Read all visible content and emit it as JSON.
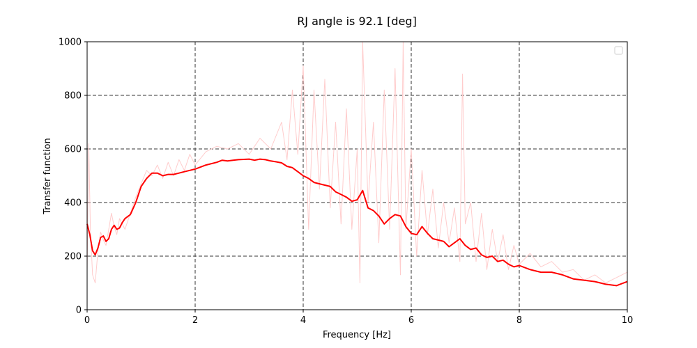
{
  "chart_data": {
    "type": "line",
    "title": "RJ angle is 92.1 [deg]",
    "xlabel": "Frequency [Hz]",
    "ylabel": "Transfer function",
    "xlim": [
      0,
      10
    ],
    "ylim": [
      0,
      1000
    ],
    "x_ticks": [
      0,
      2,
      4,
      6,
      8,
      10
    ],
    "y_ticks": [
      0,
      200,
      400,
      600,
      800,
      1000
    ],
    "x_tick_labels": [
      "0",
      "2",
      "4",
      "6",
      "8",
      "10"
    ],
    "y_tick_labels": [
      "0",
      "200",
      "400",
      "600",
      "800",
      "1000"
    ],
    "grid": true,
    "grid_style": "dashed",
    "legend": {
      "placement": "upper right",
      "entries": []
    },
    "series": [
      {
        "role": "raw",
        "color": "#ffcccc",
        "x": [
          0.0,
          0.03,
          0.06,
          0.1,
          0.15,
          0.2,
          0.25,
          0.3,
          0.35,
          0.4,
          0.45,
          0.5,
          0.55,
          0.6,
          0.7,
          0.8,
          0.9,
          1.0,
          1.1,
          1.2,
          1.3,
          1.4,
          1.5,
          1.6,
          1.7,
          1.8,
          1.9,
          2.0,
          2.2,
          2.4,
          2.6,
          2.8,
          3.0,
          3.2,
          3.4,
          3.6,
          3.7,
          3.8,
          3.9,
          4.0,
          4.1,
          4.2,
          4.3,
          4.4,
          4.5,
          4.6,
          4.7,
          4.8,
          4.9,
          5.0,
          5.05,
          5.1,
          5.2,
          5.3,
          5.4,
          5.5,
          5.6,
          5.7,
          5.8,
          5.85,
          5.9,
          6.0,
          6.1,
          6.2,
          6.3,
          6.4,
          6.5,
          6.6,
          6.7,
          6.8,
          6.9,
          6.95,
          7.0,
          7.1,
          7.2,
          7.3,
          7.4,
          7.5,
          7.6,
          7.7,
          7.8,
          7.9,
          8.0,
          8.2,
          8.4,
          8.6,
          8.8,
          9.0,
          9.2,
          9.4,
          9.6,
          9.8,
          10.0
        ],
        "values": [
          150,
          620,
          300,
          130,
          100,
          220,
          290,
          260,
          240,
          300,
          360,
          310,
          280,
          340,
          300,
          360,
          420,
          470,
          520,
          500,
          540,
          490,
          550,
          500,
          560,
          520,
          580,
          540,
          590,
          610,
          600,
          620,
          580,
          640,
          600,
          700,
          560,
          820,
          580,
          910,
          300,
          820,
          450,
          860,
          380,
          700,
          320,
          750,
          300,
          600,
          100,
          1000,
          400,
          700,
          250,
          820,
          300,
          900,
          130,
          1000,
          300,
          600,
          200,
          520,
          280,
          450,
          230,
          400,
          250,
          380,
          180,
          880,
          320,
          400,
          180,
          360,
          150,
          300,
          180,
          280,
          150,
          240,
          170,
          210,
          160,
          180,
          140,
          150,
          110,
          130,
          100,
          120,
          140
        ]
      },
      {
        "role": "smoothed",
        "color": "#ff0000",
        "x": [
          0.0,
          0.05,
          0.1,
          0.15,
          0.2,
          0.25,
          0.3,
          0.35,
          0.4,
          0.45,
          0.5,
          0.55,
          0.6,
          0.65,
          0.7,
          0.8,
          0.9,
          1.0,
          1.1,
          1.2,
          1.3,
          1.4,
          1.5,
          1.6,
          1.7,
          1.8,
          1.9,
          2.0,
          2.2,
          2.4,
          2.5,
          2.6,
          2.7,
          2.8,
          3.0,
          3.1,
          3.2,
          3.3,
          3.4,
          3.5,
          3.6,
          3.7,
          3.8,
          3.9,
          4.0,
          4.1,
          4.2,
          4.3,
          4.4,
          4.5,
          4.6,
          4.7,
          4.8,
          4.9,
          5.0,
          5.1,
          5.2,
          5.3,
          5.4,
          5.5,
          5.6,
          5.7,
          5.8,
          5.9,
          6.0,
          6.1,
          6.2,
          6.3,
          6.4,
          6.5,
          6.6,
          6.7,
          6.8,
          6.9,
          7.0,
          7.1,
          7.2,
          7.3,
          7.4,
          7.5,
          7.6,
          7.7,
          7.8,
          7.9,
          8.0,
          8.2,
          8.4,
          8.6,
          8.8,
          9.0,
          9.2,
          9.4,
          9.6,
          9.8,
          10.0
        ],
        "values": [
          320,
          280,
          220,
          205,
          230,
          270,
          275,
          255,
          265,
          300,
          315,
          300,
          305,
          325,
          340,
          355,
          400,
          460,
          490,
          510,
          510,
          500,
          505,
          505,
          510,
          515,
          520,
          525,
          540,
          550,
          558,
          555,
          558,
          560,
          562,
          558,
          562,
          560,
          555,
          552,
          548,
          535,
          530,
          515,
          500,
          490,
          475,
          470,
          465,
          460,
          440,
          430,
          420,
          405,
          410,
          445,
          380,
          370,
          350,
          320,
          340,
          355,
          350,
          310,
          285,
          280,
          310,
          285,
          265,
          260,
          255,
          235,
          250,
          265,
          240,
          225,
          230,
          205,
          195,
          200,
          180,
          185,
          170,
          160,
          165,
          150,
          140,
          140,
          130,
          115,
          110,
          105,
          95,
          90,
          105
        ]
      }
    ]
  }
}
